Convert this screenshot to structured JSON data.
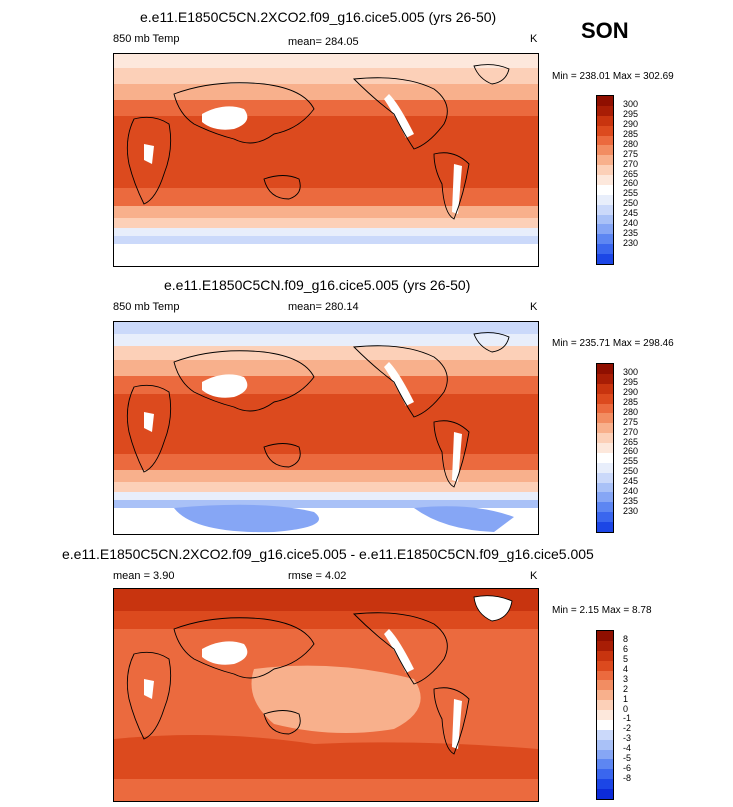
{
  "season": "SON",
  "colors": {
    "abs": [
      "#00007f",
      "#0c2bd9",
      "#1c46e6",
      "#3a66ee",
      "#5d86f2",
      "#86a6f5",
      "#a9c1f7",
      "#cbd9fa",
      "#e8eefb",
      "#ffffff",
      "#fde8dc",
      "#fcd0b8",
      "#f8b08c",
      "#f28d62",
      "#eb6a3e",
      "#dc4a1e",
      "#c8340f",
      "#a81d05",
      "#8f0f00"
    ],
    "diff": [
      "#00007f",
      "#0c2bd9",
      "#1c46e6",
      "#3a66ee",
      "#5d86f2",
      "#86a6f5",
      "#a9c1f7",
      "#cbd9fa",
      "#ffffff",
      "#fde8dc",
      "#fcd0b8",
      "#f8b08c",
      "#f28d62",
      "#eb6a3e",
      "#dc4a1e",
      "#c8340f",
      "#a81d05",
      "#8f0f00"
    ]
  },
  "chart_data": [
    {
      "type": "heatmap",
      "title": "e.e11.E1850C5CN.2XCO2.f09_g16.cice5.005 (yrs 26-50)",
      "variable": "850 mb Temp",
      "mean": "mean= 284.05",
      "units": "K",
      "minmax": "Min = 238.01 Max = 302.69",
      "legend_levels": [
        "300",
        "295",
        "290",
        "285",
        "280",
        "275",
        "270",
        "265",
        "260",
        "255",
        "250",
        "245",
        "240",
        "235",
        "230"
      ]
    },
    {
      "type": "heatmap",
      "title": "e.e11.E1850C5CN.f09_g16.cice5.005 (yrs 26-50)",
      "variable": "850 mb Temp",
      "mean": "mean= 280.14",
      "units": "K",
      "minmax": "Min = 235.71 Max = 298.46",
      "legend_levels": [
        "300",
        "295",
        "290",
        "285",
        "280",
        "275",
        "270",
        "265",
        "260",
        "255",
        "250",
        "245",
        "240",
        "235",
        "230"
      ]
    },
    {
      "type": "heatmap",
      "title": "e.e11.E1850C5CN.2XCO2.f09_g16.cice5.005 - e.e11.E1850C5CN.f09_g16.cice5.005",
      "mean": "mean =  3.90",
      "rmse": "rmse =  4.02",
      "units": "K",
      "minmax": "Min =  2.15 Max =  8.78",
      "legend_levels": [
        "8",
        "6",
        "5",
        "4",
        "3",
        "2",
        "1",
        "0",
        "-1",
        "-2",
        "-3",
        "-4",
        "-5",
        "-6",
        "-8"
      ]
    }
  ]
}
